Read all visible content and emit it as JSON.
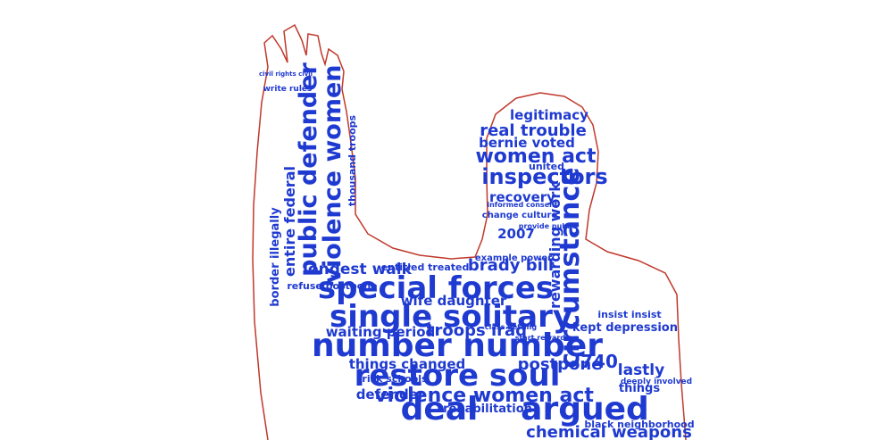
{
  "words": [
    "special forces",
    "single solitary",
    "number number",
    "restore soul",
    "deal",
    "argued",
    "violence women act",
    "chemical weapons",
    "women act",
    "inspectors",
    "real trouble",
    "legitimacy",
    "bernie voted",
    "recovery",
    "circumstance",
    "rewarding work",
    "public defender",
    "violence women",
    "entire federal",
    "border illegally",
    "longest walk",
    "brady bill",
    "entitled treated",
    "wife daughter",
    "troops iraq",
    "waiting period",
    "things changed",
    "postpone",
    "740",
    "lastly",
    "things",
    "kept depression",
    "insist insist",
    "defender",
    "rehabilitation",
    "2007",
    "refuse postpone",
    "write rules",
    "thousand troops",
    "black neighborhood",
    "risk schools",
    "example power",
    "change culture",
    "deeply involved",
    "united",
    "informed consent",
    "provide public",
    "class getting",
    "start rewarding",
    "civil rights civil"
  ]
}
